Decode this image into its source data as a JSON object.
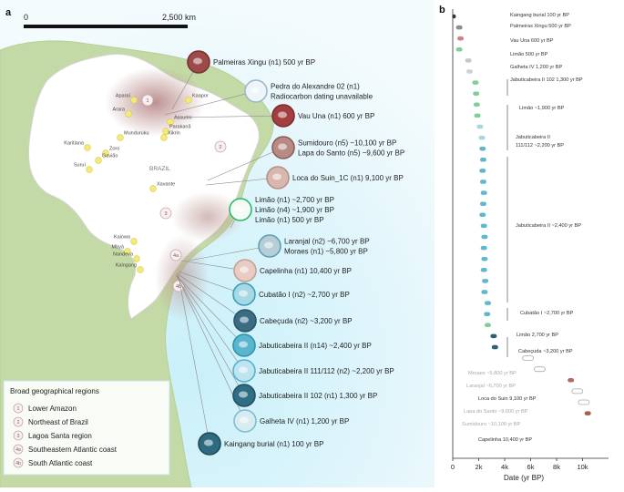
{
  "panel_a": {
    "label": "a",
    "scalebar": {
      "start": "0",
      "end": "2,500 km"
    },
    "country_label": "BRAZIL",
    "region_numbers": [
      "1",
      "2",
      "3",
      "4a",
      "4b"
    ],
    "groups": [
      {
        "name": "Aparaí"
      },
      {
        "name": "Arara"
      },
      {
        "name": "Kaapor"
      },
      {
        "name": "Assurini"
      },
      {
        "name": "Parakanã"
      },
      {
        "name": "Xikrin"
      },
      {
        "name": "Munduruku"
      },
      {
        "name": "Karitiana"
      },
      {
        "name": "Zoro"
      },
      {
        "name": "Gavião"
      },
      {
        "name": "Suruí"
      },
      {
        "name": "Xavante"
      },
      {
        "name": "Kaiowa"
      },
      {
        "name": "Mbyá"
      },
      {
        "name": "Nandeva"
      },
      {
        "name": "Kaingang"
      }
    ],
    "sites": [
      {
        "lines": [
          "Palmeiras Xingu (n1) 500 yr BP"
        ]
      },
      {
        "lines": [
          "Pedra do Alexandre 02 (n1)",
          "Radiocarbon dating unavailable"
        ]
      },
      {
        "lines": [
          "Vau Una (n1) 600 yr BP"
        ]
      },
      {
        "lines": [
          "Sumidouro (n5) ~10,100 yr BP",
          "Lapa do Santo (n5) ~9,600 yr BP"
        ]
      },
      {
        "lines": [
          "Loca do Suin_1C (n1) 9,100 yr BP"
        ]
      },
      {
        "lines": [
          "Limão (n1) ~2,700 yr BP",
          "Limão (n4) ~1,900 yr BP",
          "Limão (n1) 500 yr BP"
        ]
      },
      {
        "lines": [
          "Laranjal (n2) ~6,700 yr BP",
          "Moraes (n1) ~5,800 yr BP"
        ]
      },
      {
        "lines": [
          "Capelinha (n1) 10,400 yr BP"
        ]
      },
      {
        "lines": [
          "Cubatão I (n2) ~2,700 yr BP"
        ]
      },
      {
        "lines": [
          "Cabeçuda (n2) ~3,200 yr BP"
        ]
      },
      {
        "lines": [
          "Jabuticabeira II (n14) ~2,400 yr BP"
        ]
      },
      {
        "lines": [
          "Jabuticabeira II 111/112 (n2) ~2,200 yr BP"
        ]
      },
      {
        "lines": [
          "Jabuticabeira II 102 (n1) 1,300 yr BP"
        ]
      },
      {
        "lines": [
          "Galheta IV (n1) 1,200 yr BP"
        ]
      },
      {
        "lines": [
          "Kaingang burial (n1) 100 yr BP"
        ]
      }
    ],
    "legend": {
      "title": "Broad geographical regions",
      "items": [
        {
          "num": "1",
          "label": "Lower Amazon"
        },
        {
          "num": "2",
          "label": "Northeast of Brazil"
        },
        {
          "num": "3",
          "label": "Lagoa Santa region"
        },
        {
          "num": "4a",
          "label": "Southeastern Atlantic coast"
        },
        {
          "num": "4b",
          "label": "South Atlantic coast"
        }
      ]
    }
  },
  "chart_data": {
    "type": "scatter",
    "panel_label": "b",
    "xlabel": "Date (yr BP)",
    "xlim": [
      0,
      12000
    ],
    "xticks": [
      "0",
      "2k",
      "4k",
      "6k",
      "8k",
      "10k"
    ],
    "xtick_values": [
      0,
      2000,
      4000,
      6000,
      8000,
      10000
    ],
    "samples": [
      {
        "value": 100,
        "color": "#333333",
        "outline": false
      },
      {
        "value": 500,
        "color": "#8f8b86",
        "outline": false
      },
      {
        "value": 600,
        "color": "#c98585",
        "outline": false
      },
      {
        "value": 500,
        "color": "#7fcf97",
        "outline": false
      },
      {
        "value": 1200,
        "color": "#c8c8c8",
        "outline": false
      },
      {
        "value": 1300,
        "color": "#d0d0d0",
        "outline": false
      },
      {
        "value": 1750,
        "color": "#7fcf97",
        "outline": false
      },
      {
        "value": 1800,
        "color": "#7fcf97",
        "outline": false
      },
      {
        "value": 1850,
        "color": "#7fcf97",
        "outline": false
      },
      {
        "value": 1900,
        "color": "#7fcf97",
        "outline": false
      },
      {
        "value": 2100,
        "color": "#a9d6e0",
        "outline": false
      },
      {
        "value": 2250,
        "color": "#a9d6e0",
        "outline": false
      },
      {
        "value": 2300,
        "color": "#5fb8cc",
        "outline": false
      },
      {
        "value": 2350,
        "color": "#5fb8cc",
        "outline": false
      },
      {
        "value": 2300,
        "color": "#5fb8cc",
        "outline": false
      },
      {
        "value": 2350,
        "color": "#5fb8cc",
        "outline": false
      },
      {
        "value": 2400,
        "color": "#5fb8cc",
        "outline": false
      },
      {
        "value": 2350,
        "color": "#5fb8cc",
        "outline": false
      },
      {
        "value": 2300,
        "color": "#5fb8cc",
        "outline": false
      },
      {
        "value": 2400,
        "color": "#5fb8cc",
        "outline": false
      },
      {
        "value": 2450,
        "color": "#5fb8cc",
        "outline": false
      },
      {
        "value": 2400,
        "color": "#5fb8cc",
        "outline": false
      },
      {
        "value": 2450,
        "color": "#5fb8cc",
        "outline": false
      },
      {
        "value": 2400,
        "color": "#5fb8cc",
        "outline": false
      },
      {
        "value": 2500,
        "color": "#5fb8cc",
        "outline": false
      },
      {
        "value": 2450,
        "color": "#5fb8cc",
        "outline": false
      },
      {
        "value": 2700,
        "color": "#5fb8cc",
        "outline": false
      },
      {
        "value": 2650,
        "color": "#5fb8cc",
        "outline": false
      },
      {
        "value": 2700,
        "color": "#7fcf97",
        "outline": false
      },
      {
        "value": 3150,
        "color": "#2f5f78",
        "outline": false
      },
      {
        "value": 3250,
        "color": "#2f5f78",
        "outline": false
      },
      {
        "value": 5800,
        "color": "#bbbbbb",
        "outline": true
      },
      {
        "value": 6700,
        "color": "#bbbbbb",
        "outline": true
      },
      {
        "value": 9100,
        "color": "#b06a6a",
        "outline": false
      },
      {
        "value": 9600,
        "color": "#bbbbbb",
        "outline": true
      },
      {
        "value": 10100,
        "color": "#bbbbbb",
        "outline": true
      },
      {
        "value": 10400,
        "color": "#a85f4f",
        "outline": false
      }
    ],
    "labels": [
      {
        "text": "Kaingang burial 100 yr BP",
        "muted": false
      },
      {
        "text": "Palmeiras Xingu 500 yr BP",
        "muted": false
      },
      {
        "text": "Vau Una 600 yr BP",
        "muted": false
      },
      {
        "text": "Limão 500 yr BP",
        "muted": false
      },
      {
        "text": "Galheta IV 1,200 yr BP",
        "muted": false
      },
      {
        "text": "Jabuticabeira II 102 1,300 yr BP",
        "muted": false
      },
      {
        "text": "Limão ~1,900 yr BP",
        "muted": false
      },
      {
        "text": "Jabuticabeira II",
        "muted": false
      },
      {
        "text": "111/112 ~2,200 yr BP",
        "muted": false
      },
      {
        "text": "Jabuticabeira II ~2,400 yr BP",
        "muted": false
      },
      {
        "text": "Cubatão I ~2,700 yr BP",
        "muted": false
      },
      {
        "text": "Limão 2,700 yr BP",
        "muted": false
      },
      {
        "text": "Cabeçuda ~3,200 yr BP",
        "muted": false
      },
      {
        "text": "Moraes ~5,800 yr BP",
        "muted": true
      },
      {
        "text": "Laranjal ~6,700 yr BP",
        "muted": true
      },
      {
        "text": "Loca do Suin 9,100 yr BP",
        "muted": false
      },
      {
        "text": "Lapa do Santo ~9,600 yr BP",
        "muted": true
      },
      {
        "text": "Sumidouro ~10,100 yr BP",
        "muted": true
      },
      {
        "text": "Capelinha 10,400 yr BP",
        "muted": false
      }
    ]
  }
}
